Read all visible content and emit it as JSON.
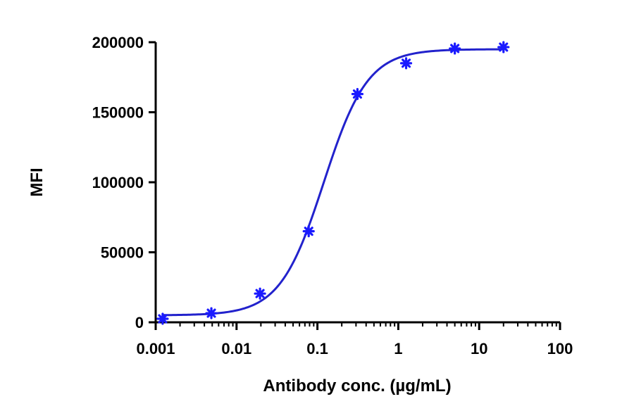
{
  "chart_data": {
    "type": "scatter",
    "xlabel": "Antibody conc. (µg/mL)",
    "ylabel": "MFI",
    "xscale": "log10",
    "xlim": [
      0.001,
      100
    ],
    "ylim": [
      0,
      200000
    ],
    "x_ticks": [
      0.001,
      0.01,
      0.1,
      1,
      10,
      100
    ],
    "x_tick_labels": [
      "0.001",
      "0.01",
      "0.1",
      "1",
      "10",
      "100"
    ],
    "y_ticks": [
      0,
      50000,
      100000,
      150000,
      200000
    ],
    "y_tick_labels": [
      "0",
      "50000",
      "100000",
      "150000",
      "200000"
    ],
    "grid": false,
    "legend": "none",
    "series": [
      {
        "color": "#1a1aff",
        "marker": "asterisk",
        "points": [
          {
            "x": 0.00122,
            "y": 2500
          },
          {
            "x": 0.00488,
            "y": 6500
          },
          {
            "x": 0.0195,
            "y": 20500
          },
          {
            "x": 0.078,
            "y": 65000
          },
          {
            "x": 0.3125,
            "y": 163000
          },
          {
            "x": 1.25,
            "y": 185000
          },
          {
            "x": 5,
            "y": 195500
          },
          {
            "x": 20,
            "y": 196500
          }
        ]
      }
    ],
    "fit": {
      "type": "4PL",
      "color": "#2222cc",
      "bottom": 5000,
      "top": 195000,
      "ec50": 0.12,
      "hill": 1.6,
      "x_range": [
        0.00122,
        20
      ]
    }
  }
}
